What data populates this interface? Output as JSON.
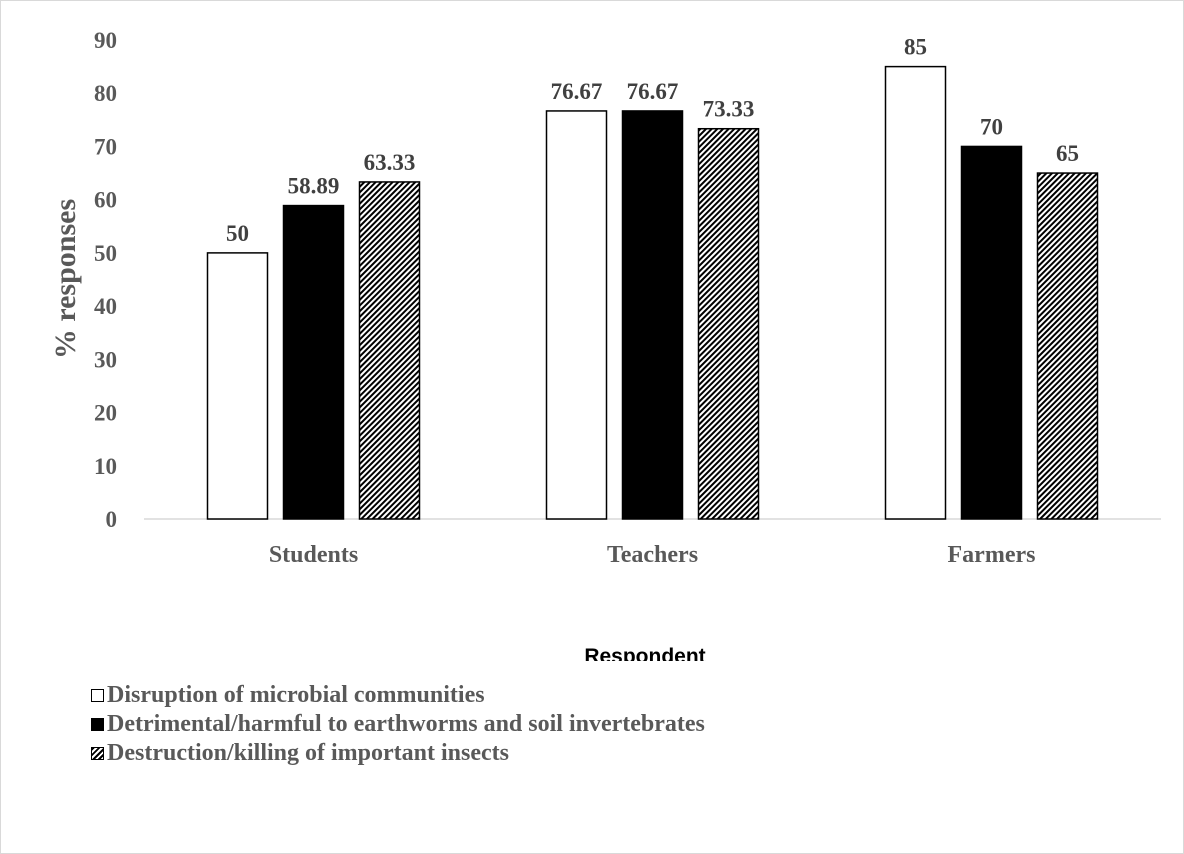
{
  "chart_data": {
    "type": "bar",
    "title": "",
    "ylabel": "% responses",
    "xlabel": "Respondent",
    "ylim": [
      0,
      90
    ],
    "yticks": [
      0,
      10,
      20,
      30,
      40,
      50,
      60,
      70,
      80,
      90
    ],
    "grid": false,
    "legend_position": "bottom-left",
    "categories": [
      "Students",
      "Teachers",
      "Farmers"
    ],
    "series": [
      {
        "name": "Disruption of microbial communities",
        "fill": "white",
        "values": [
          50,
          76.67,
          85
        ],
        "labels": [
          "50",
          "76.67",
          "85"
        ]
      },
      {
        "name": "Detrimental/harmful to earthworms and soil invertebrates",
        "fill": "black",
        "values": [
          58.89,
          76.67,
          70
        ],
        "labels": [
          "58.89",
          "76.67",
          "70"
        ]
      },
      {
        "name": "Destruction/killing of important insects",
        "fill": "diagonal-hatch",
        "values": [
          63.33,
          73.33,
          65
        ],
        "labels": [
          "63.33",
          "73.33",
          "65"
        ]
      }
    ],
    "colors": {
      "axis": "#d9d9d9",
      "text": "#595959",
      "bar_outline": "#000000"
    }
  }
}
